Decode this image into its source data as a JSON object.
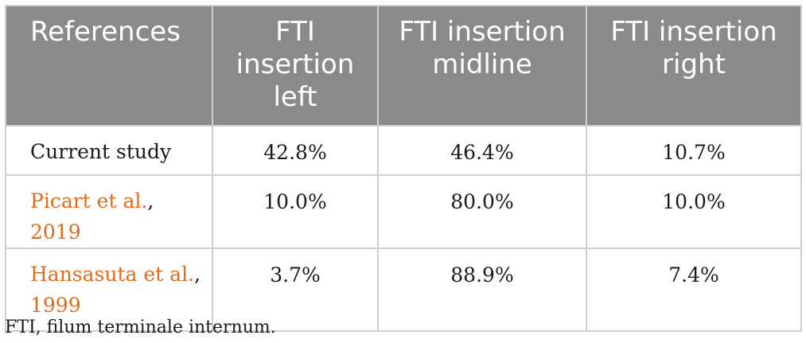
{
  "table": {
    "headers": [
      "References",
      "FTI insertion left",
      "FTI insertion midline",
      "FTI insertion right"
    ],
    "rows": [
      {
        "ref_text": "Current study",
        "ref_link": "",
        "ref_year": "",
        "left": "42.8%",
        "midline": "46.4%",
        "right": "10.7%"
      },
      {
        "ref_text": "",
        "ref_link": "Picart et al.",
        "ref_sep": ", ",
        "ref_year": "2019",
        "left": "10.0%",
        "midline": "80.0%",
        "right": "10.0%"
      },
      {
        "ref_text": "",
        "ref_link": "Hansasuta et al.",
        "ref_sep": ",",
        "ref_year": "1999",
        "left": "3.7%",
        "midline": "88.9%",
        "right": "7.4%"
      }
    ]
  },
  "colors": {
    "header_bg": "#8a8a8a",
    "link": "#e06c1b"
  },
  "footnote": "FTI, filum terminale internum."
}
